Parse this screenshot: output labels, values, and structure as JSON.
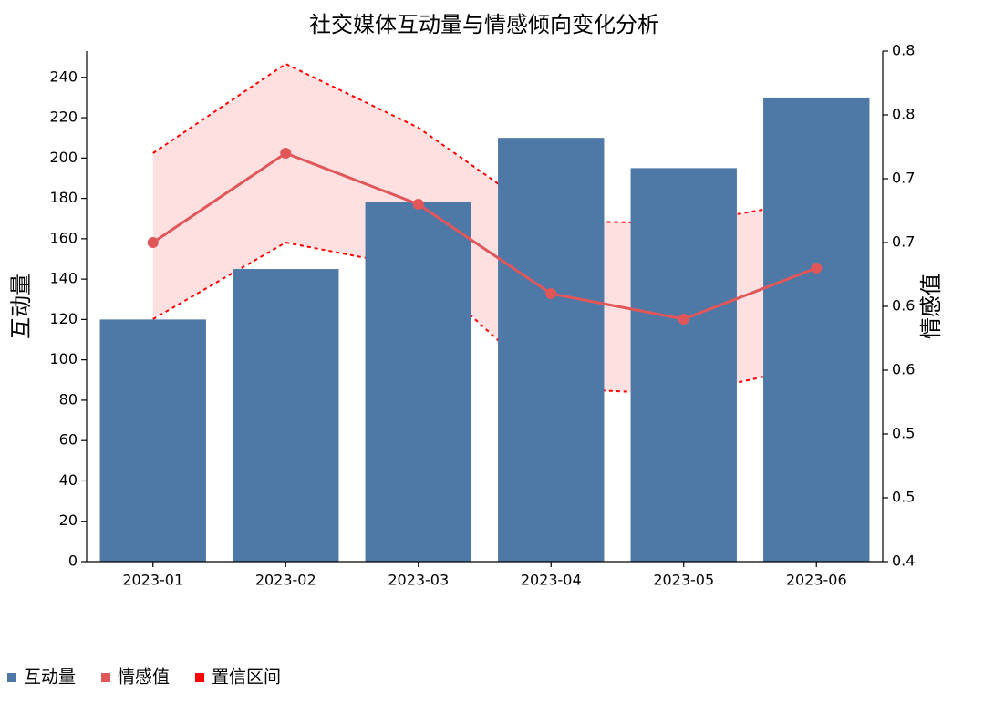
{
  "chart_data": {
    "type": "bar_line",
    "title": "社交媒体互动量与情感倾向变化分析",
    "ylabel": "互动量",
    "y2label": "情感值",
    "categories": [
      "2023-01",
      "2023-02",
      "2023-03",
      "2023-04",
      "2023-05",
      "2023-06"
    ],
    "ylim": [
      0,
      253
    ],
    "yticks": [
      0,
      20,
      40,
      60,
      80,
      100,
      120,
      140,
      160,
      180,
      200,
      220,
      240
    ],
    "y2lim": [
      0.4,
      0.8
    ],
    "y2ticks": [
      0.4,
      {
        "value": 0.45,
        "label": "0.5"
      },
      0.5,
      {
        "value": 0.55,
        "label": "0.6"
      },
      0.6,
      {
        "value": 0.65,
        "label": "0.7"
      },
      0.7,
      {
        "value": 0.75,
        "label": "0.8"
      },
      0.8
    ],
    "legend": "bottom-left",
    "series": [
      {
        "name": "互动量",
        "type": "bar",
        "color": "#4e79a7",
        "values": [
          120,
          145,
          178,
          210,
          195,
          230
        ]
      },
      {
        "name": "情感值",
        "type": "line",
        "axis": "y2",
        "color": "#e15759",
        "values": [
          0.65,
          0.72,
          0.68,
          0.61,
          0.59,
          0.63
        ]
      },
      {
        "name": "置信区间",
        "type": "band",
        "axis": "y2",
        "color": "#ff0000",
        "upper": [
          0.72,
          0.79,
          0.74,
          0.667,
          0.665,
          0.683
        ],
        "lower": [
          0.59,
          0.65,
          0.63,
          0.536,
          0.531,
          0.554
        ]
      }
    ]
  }
}
